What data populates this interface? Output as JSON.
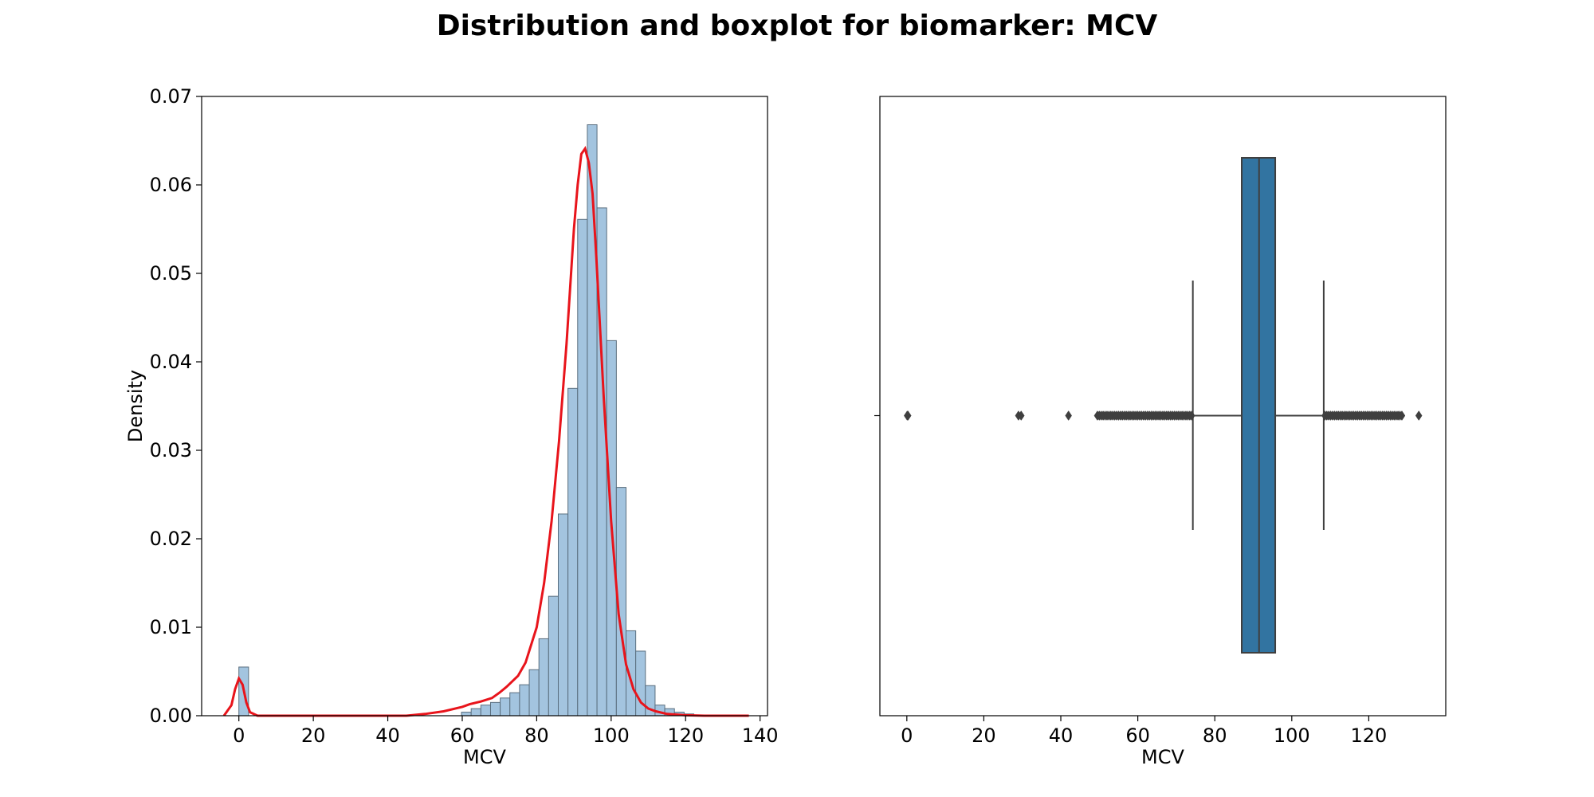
{
  "figure": {
    "title": "Distribution and boxplot for biomarker: MCV"
  },
  "colors": {
    "hist_fill": "#a3c4df",
    "hist_edge": "#5a6e7e",
    "kde": "#e8141b",
    "box_fill": "#3274a1",
    "box_edge": "#3f3f3f"
  },
  "chart_data": [
    {
      "type": "bar",
      "subtype": "histogram_with_kde",
      "xlabel": "MCV",
      "ylabel": "Density",
      "xlim": [
        -10,
        142
      ],
      "ylim": [
        0,
        0.07
      ],
      "xticks": [
        0,
        20,
        40,
        60,
        80,
        100,
        120,
        140
      ],
      "yticks": [
        0.0,
        0.01,
        0.02,
        0.03,
        0.04,
        0.05,
        0.06,
        0.07
      ],
      "ytick_labels": [
        "0.00",
        "0.01",
        "0.02",
        "0.03",
        "0.04",
        "0.05",
        "0.06",
        "0.07"
      ],
      "bin_width": 2.6,
      "bins": [
        {
          "x0": 0.0,
          "y": 0.0055
        },
        {
          "x0": 59.8,
          "y": 0.0004
        },
        {
          "x0": 62.4,
          "y": 0.0008
        },
        {
          "x0": 65.0,
          "y": 0.0012
        },
        {
          "x0": 67.6,
          "y": 0.0015
        },
        {
          "x0": 70.2,
          "y": 0.002
        },
        {
          "x0": 72.8,
          "y": 0.0026
        },
        {
          "x0": 75.4,
          "y": 0.0035
        },
        {
          "x0": 78.0,
          "y": 0.0052
        },
        {
          "x0": 80.6,
          "y": 0.0087
        },
        {
          "x0": 83.2,
          "y": 0.0135
        },
        {
          "x0": 85.8,
          "y": 0.0228
        },
        {
          "x0": 88.4,
          "y": 0.037
        },
        {
          "x0": 91.0,
          "y": 0.0561
        },
        {
          "x0": 93.6,
          "y": 0.0668
        },
        {
          "x0": 96.2,
          "y": 0.0574
        },
        {
          "x0": 98.8,
          "y": 0.0424
        },
        {
          "x0": 101.4,
          "y": 0.0258
        },
        {
          "x0": 104.0,
          "y": 0.0096
        },
        {
          "x0": 106.6,
          "y": 0.0073
        },
        {
          "x0": 109.2,
          "y": 0.0034
        },
        {
          "x0": 111.8,
          "y": 0.0012
        },
        {
          "x0": 114.4,
          "y": 0.0008
        },
        {
          "x0": 117.0,
          "y": 0.0004
        },
        {
          "x0": 119.6,
          "y": 0.0002
        }
      ],
      "kde": {
        "x": [
          -4,
          -2,
          -1,
          0,
          1,
          2,
          3,
          5,
          20,
          45,
          50,
          55,
          60,
          62,
          65,
          68,
          70,
          72,
          75,
          77,
          80,
          82,
          84,
          86,
          88,
          90,
          91,
          92,
          93,
          94,
          95,
          96,
          98,
          100,
          102,
          104,
          106,
          108,
          110,
          112,
          115,
          120,
          125,
          130,
          137
        ],
        "y": [
          0.0,
          0.0012,
          0.003,
          0.0042,
          0.0035,
          0.0015,
          0.0004,
          0.0,
          0.0,
          0.0,
          0.0002,
          0.0005,
          0.001,
          0.0013,
          0.0016,
          0.002,
          0.0026,
          0.0033,
          0.0045,
          0.006,
          0.01,
          0.015,
          0.022,
          0.031,
          0.042,
          0.055,
          0.06,
          0.0635,
          0.0641,
          0.0625,
          0.059,
          0.052,
          0.036,
          0.022,
          0.0115,
          0.0058,
          0.003,
          0.0015,
          0.0008,
          0.0005,
          0.0002,
          5e-05,
          0.0,
          0.0,
          0.0
        ]
      }
    },
    {
      "type": "boxplot",
      "xlabel": "MCV",
      "xlim": [
        -7,
        140
      ],
      "xticks": [
        0,
        20,
        40,
        60,
        80,
        100,
        120
      ],
      "q1": 87.0,
      "median": 91.5,
      "q3": 95.7,
      "whisker_low": 74.3,
      "whisker_high": 108.3,
      "outliers": [
        0.1,
        0.3,
        29.0,
        29.7,
        42.0,
        133.0
      ],
      "outlier_bands": [
        [
          49.5,
          74.0
        ],
        [
          108.6,
          129.0
        ]
      ]
    }
  ]
}
